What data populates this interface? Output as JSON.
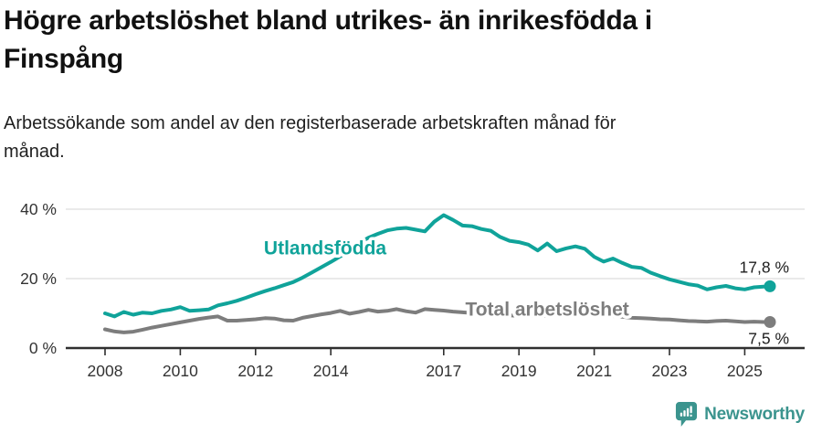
{
  "title": {
    "lines": [
      "Högre arbetslöshet bland utrikes- än inrikesfödda i",
      "Finspång"
    ]
  },
  "subtitle": {
    "lines": [
      "Arbetssökande som andel av den registerbaserade arbetskraften månad för",
      "månad."
    ]
  },
  "footer": {
    "brand": "Newsworthy",
    "logo_icon": "newsworthy-speech-bubble-bar-chart-icon"
  },
  "colors": {
    "foreign_born": "#10a39a",
    "total": "#7d7d7d",
    "grid": "#e4e4e4",
    "axis": "#2f2f2f",
    "brand": "#3b948e"
  },
  "chart_data": {
    "type": "line",
    "grid": "horizontal",
    "xlabel": "",
    "ylabel": "",
    "xlim": [
      2007.6,
      2026.3
    ],
    "ylim": [
      0,
      45
    ],
    "x_ticks": [
      2008,
      2010,
      2012,
      2014,
      2017,
      2019,
      2021,
      2023,
      2025
    ],
    "x_tick_labels": [
      "2008",
      "2010",
      "2012",
      "2014",
      "2017",
      "2019",
      "2021",
      "2023",
      "2025"
    ],
    "y_ticks": [
      0,
      20,
      40
    ],
    "y_tick_labels": [
      "0 %",
      "20 %",
      "40 %"
    ],
    "x": [
      2008,
      2008.25,
      2008.5,
      2008.75,
      2009,
      2009.25,
      2009.5,
      2009.75,
      2010,
      2010.25,
      2010.5,
      2010.75,
      2011,
      2011.25,
      2011.5,
      2011.75,
      2012,
      2012.25,
      2012.5,
      2012.75,
      2013,
      2013.25,
      2013.5,
      2013.75,
      2014,
      2014.25,
      2014.5,
      2014.75,
      2015,
      2015.25,
      2015.5,
      2015.75,
      2016,
      2016.25,
      2016.5,
      2016.75,
      2017,
      2017.25,
      2017.5,
      2017.75,
      2018,
      2018.25,
      2018.5,
      2018.75,
      2019,
      2019.25,
      2019.5,
      2019.75,
      2020,
      2020.25,
      2020.5,
      2020.75,
      2021,
      2021.25,
      2021.5,
      2021.75,
      2022,
      2022.25,
      2022.5,
      2022.75,
      2023,
      2023.25,
      2023.5,
      2023.75,
      2024,
      2024.25,
      2024.5,
      2024.75,
      2025,
      2025.25,
      2025.5,
      2025.67
    ],
    "series": [
      {
        "id": "utlandsfodda",
        "name": "Utlandsfödda",
        "color": "#10a39a",
        "end_label": "17,8 %",
        "end_label_position": "above",
        "values": [
          10.0,
          9.1,
          10.4,
          9.6,
          10.2,
          10.0,
          10.7,
          11.1,
          11.8,
          10.7,
          10.9,
          11.1,
          12.3,
          12.9,
          13.6,
          14.5,
          15.5,
          16.4,
          17.2,
          18.1,
          19.0,
          20.3,
          21.8,
          23.3,
          24.8,
          26.4,
          28.2,
          30.2,
          31.8,
          32.9,
          33.9,
          34.4,
          34.6,
          34.1,
          33.6,
          36.4,
          38.3,
          36.9,
          35.3,
          35.1,
          34.3,
          33.8,
          32.0,
          30.9,
          30.5,
          29.8,
          28.1,
          30.1,
          27.9,
          28.7,
          29.3,
          28.6,
          26.3,
          24.9,
          25.8,
          24.5,
          23.4,
          23.1,
          21.7,
          20.7,
          19.8,
          19.1,
          18.4,
          18.0,
          16.9,
          17.5,
          17.9,
          17.2,
          16.9,
          17.5,
          17.7,
          17.8
        ]
      },
      {
        "id": "total-arbetsloshet",
        "name": "Total arbetslöshet",
        "color": "#7d7d7d",
        "end_label": "7,5 %",
        "end_label_position": "below",
        "values": [
          5.4,
          4.8,
          4.5,
          4.7,
          5.3,
          5.9,
          6.4,
          6.9,
          7.4,
          7.9,
          8.4,
          8.8,
          9.1,
          7.9,
          7.9,
          8.1,
          8.3,
          8.6,
          8.5,
          8.0,
          7.9,
          8.7,
          9.2,
          9.7,
          10.1,
          10.7,
          9.9,
          10.4,
          11.0,
          10.5,
          10.7,
          11.2,
          10.6,
          10.2,
          11.2,
          11.0,
          10.8,
          10.5,
          10.3,
          10.1,
          9.9,
          9.7,
          9.5,
          9.4,
          9.3,
          9.2,
          9.2,
          9.4,
          9.7,
          10.0,
          10.0,
          9.8,
          9.6,
          9.4,
          9.2,
          9.0,
          8.7,
          8.6,
          8.5,
          8.3,
          8.2,
          8.0,
          7.8,
          7.7,
          7.6,
          7.8,
          7.9,
          7.7,
          7.5,
          7.6,
          7.5,
          7.5
        ]
      }
    ],
    "annotations": [
      {
        "text": "Utlandsfödda",
        "x": 2013.85,
        "y": 27.0,
        "color": "#10a39a"
      },
      {
        "text": "Total arbetslöshet",
        "x": 2019.75,
        "y": 9.3,
        "color": "#7d7d7d"
      }
    ]
  }
}
